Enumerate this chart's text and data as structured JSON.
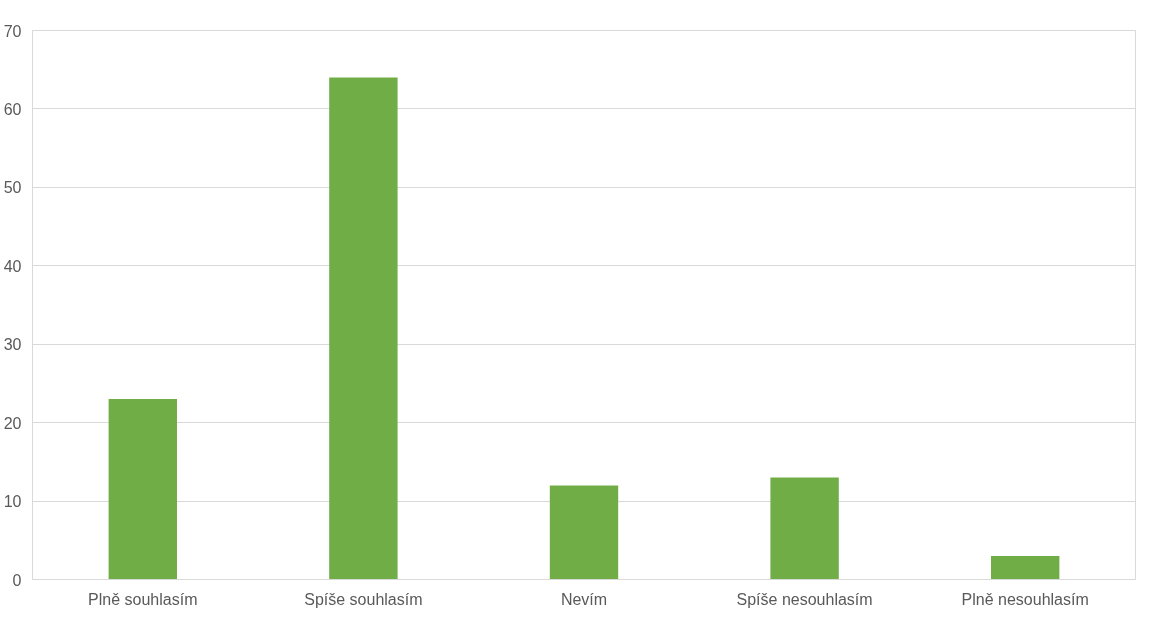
{
  "chart_data": {
    "type": "bar",
    "categories": [
      "Plně souhlasím",
      "Spíše souhlasím",
      "Nevím",
      "Spíše nesouhlasím",
      "Plně nesouhlasím"
    ],
    "values": [
      23,
      64,
      12,
      13,
      3
    ],
    "color": "#70ad47",
    "ylim": [
      0,
      70
    ],
    "yticks": [
      0,
      10,
      20,
      30,
      40,
      50,
      60,
      70
    ],
    "grid": "y"
  }
}
